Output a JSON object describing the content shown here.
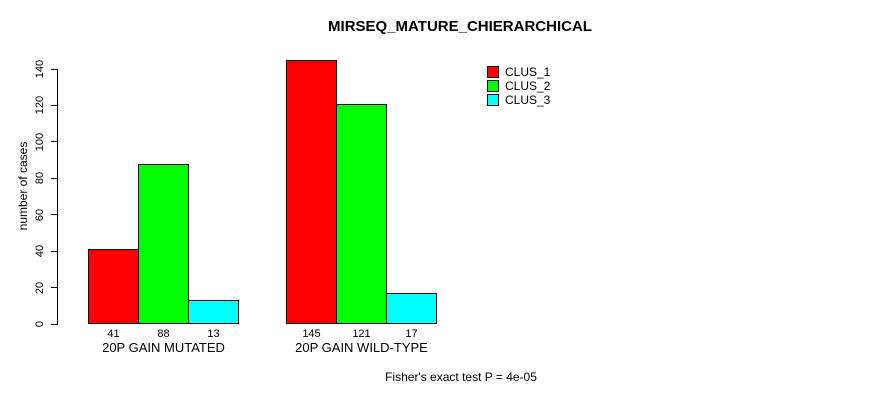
{
  "title": "MIRSEQ_MATURE_CHIERARCHICAL",
  "footer": "Fisher's exact test P = 4e-05",
  "colors": {
    "clus_1": "#ff0000",
    "clus_2": "#00ff00",
    "clus_3": "#00ffff",
    "axis": "#000000",
    "background": "#ffffff"
  },
  "legend": {
    "position": "top-right",
    "entries": [
      "CLUS_1",
      "CLUS_2",
      "CLUS_3"
    ]
  },
  "chart_data": {
    "type": "bar",
    "title": "MIRSEQ_MATURE_CHIERARCHICAL",
    "xlabel": "",
    "ylabel": "number of cases",
    "categories": [
      "20P GAIN MUTATED",
      "20P GAIN WILD-TYPE"
    ],
    "series": [
      {
        "name": "CLUS_1",
        "color": "#ff0000",
        "values": [
          41,
          145
        ]
      },
      {
        "name": "CLUS_2",
        "color": "#00ff00",
        "values": [
          88,
          121
        ]
      },
      {
        "name": "CLUS_3",
        "color": "#00ffff",
        "values": [
          13,
          17
        ]
      }
    ],
    "ylim": [
      0,
      140
    ],
    "yticks": [
      0,
      20,
      40,
      60,
      80,
      100,
      120,
      140
    ],
    "bar_value_labels": true,
    "grid": false,
    "legend_position": "top-right",
    "annotation": "Fisher's exact test P = 4e-05"
  }
}
